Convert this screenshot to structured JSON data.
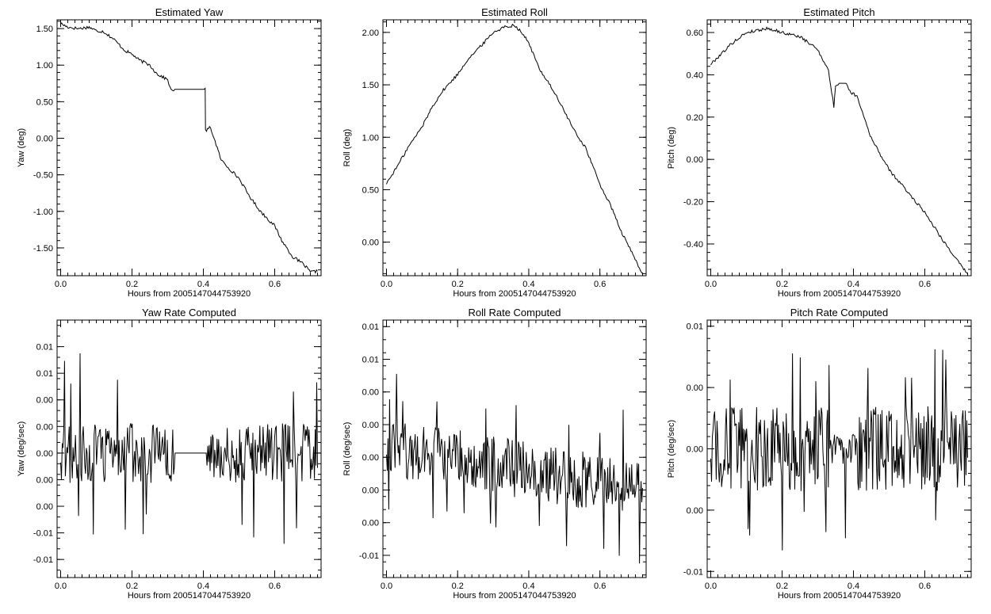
{
  "chart_data": [
    {
      "type": "line",
      "title": "Estimated Yaw",
      "xlabel": "Hours from 2005147044753920",
      "ylabel": "Yaw (deg)",
      "xlim": [
        -0.01,
        0.73
      ],
      "ylim": [
        -1.88,
        1.62
      ],
      "xticks": [
        0.0,
        0.2,
        0.4,
        0.6
      ],
      "xtick_labels": [
        "0.0",
        "0.2",
        "0.4",
        "0.6"
      ],
      "yticks": [
        1.5,
        1.0,
        0.5,
        0.0,
        -0.5,
        -1.0,
        -1.5
      ],
      "ytick_labels": [
        "1.50",
        "1.00",
        "0.50",
        "0.00",
        "-0.50",
        "-1.00",
        "-1.50"
      ],
      "series": [
        {
          "x": [
            0.0,
            0.02,
            0.05,
            0.08,
            0.1,
            0.12,
            0.15,
            0.18,
            0.2,
            0.22,
            0.25,
            0.27,
            0.3,
            0.31,
            0.32,
            0.36,
            0.405,
            0.406,
            0.42,
            0.43,
            0.45,
            0.46,
            0.5,
            0.53,
            0.56,
            0.6,
            0.62,
            0.65,
            0.68,
            0.7,
            0.72
          ],
          "y": [
            1.57,
            1.52,
            1.5,
            1.52,
            1.47,
            1.46,
            1.35,
            1.2,
            1.15,
            1.07,
            1.0,
            0.88,
            0.8,
            0.65,
            0.67,
            0.67,
            0.67,
            0.1,
            0.15,
            0.0,
            -0.3,
            -0.35,
            -0.55,
            -0.8,
            -1.0,
            -1.2,
            -1.4,
            -1.62,
            -1.72,
            -1.83,
            -1.82
          ]
        }
      ]
    },
    {
      "type": "line",
      "title": "Estimated Roll",
      "xlabel": "Hours from 2005147044753920",
      "ylabel": "Roll (deg)",
      "xlim": [
        -0.01,
        0.73
      ],
      "ylim": [
        -0.32,
        2.12
      ],
      "xticks": [
        0.0,
        0.2,
        0.4,
        0.6
      ],
      "xtick_labels": [
        "0.0",
        "0.2",
        "0.4",
        "0.6"
      ],
      "yticks": [
        2.0,
        1.5,
        1.0,
        0.5,
        0.0
      ],
      "ytick_labels": [
        "2.00",
        "1.50",
        "1.00",
        "0.50",
        "0.00"
      ],
      "series": [
        {
          "x": [
            0.0,
            0.03,
            0.06,
            0.1,
            0.13,
            0.16,
            0.2,
            0.23,
            0.26,
            0.3,
            0.33,
            0.36,
            0.38,
            0.4,
            0.43,
            0.46,
            0.5,
            0.53,
            0.56,
            0.6,
            0.63,
            0.66,
            0.69,
            0.72
          ],
          "y": [
            0.56,
            0.72,
            0.9,
            1.1,
            1.3,
            1.45,
            1.6,
            1.75,
            1.85,
            2.0,
            2.05,
            2.07,
            2.0,
            1.9,
            1.65,
            1.5,
            1.25,
            1.05,
            0.9,
            0.55,
            0.35,
            0.1,
            -0.1,
            -0.3
          ]
        }
      ]
    },
    {
      "type": "line",
      "title": "Estimated Pitch",
      "xlabel": "Hours from 2005147044753920",
      "ylabel": "Pitch (deg)",
      "xlim": [
        -0.01,
        0.73
      ],
      "ylim": [
        -0.55,
        0.66
      ],
      "xticks": [
        0.0,
        0.2,
        0.4,
        0.6
      ],
      "xtick_labels": [
        "0.0",
        "0.2",
        "0.4",
        "0.6"
      ],
      "yticks": [
        0.6,
        0.4,
        0.2,
        0.0,
        -0.2,
        -0.4
      ],
      "ytick_labels": [
        "0.60",
        "0.40",
        "0.20",
        "0.00",
        "-0.20",
        "-0.40"
      ],
      "series": [
        {
          "x": [
            0.0,
            0.03,
            0.06,
            0.1,
            0.13,
            0.16,
            0.2,
            0.25,
            0.3,
            0.33,
            0.345,
            0.35,
            0.36,
            0.38,
            0.39,
            0.41,
            0.45,
            0.5,
            0.55,
            0.6,
            0.65,
            0.7,
            0.72
          ],
          "y": [
            0.45,
            0.5,
            0.55,
            0.6,
            0.61,
            0.62,
            0.6,
            0.58,
            0.52,
            0.42,
            0.25,
            0.35,
            0.36,
            0.36,
            0.32,
            0.3,
            0.1,
            -0.05,
            -0.15,
            -0.25,
            -0.38,
            -0.5,
            -0.54
          ]
        }
      ]
    },
    {
      "type": "line",
      "title": "Yaw Rate Computed",
      "xlabel": "Hours from 2005147044753920",
      "ylabel": "Yaw (deg/sec)",
      "xlim": [
        -0.01,
        0.73
      ],
      "ylim": [
        -0.0117,
        0.0125
      ],
      "xticks": [
        0.0,
        0.2,
        0.4,
        0.6
      ],
      "xtick_labels": [
        "0.0",
        "0.2",
        "0.4",
        "0.6"
      ],
      "yticks": [
        0.01,
        0.005,
        0.0,
        -0.005,
        -0.01
      ],
      "ytick_labels": [
        "0.01",
        "0.00",
        "0.00",
        "0.00",
        "-0.01"
      ],
      "minor_yticks": [
        0.0075,
        0.0025,
        -0.0025,
        -0.0075
      ],
      "minor_ytick_labels": [
        "0.01",
        "0.00",
        "0.00",
        "-0.01"
      ],
      "noise": {
        "amplitude": 0.0028,
        "spike": 0.0095,
        "flat_from": 0.32,
        "flat_to": 0.41
      }
    },
    {
      "type": "line",
      "title": "Roll Rate Computed",
      "xlabel": "Hours from 2005147044753920",
      "ylabel": "Roll (deg/sec)",
      "xlim": [
        -0.01,
        0.73
      ],
      "ylim": [
        -0.0092,
        0.0105
      ],
      "xticks": [
        0.0,
        0.2,
        0.4,
        0.6
      ],
      "xtick_labels": [
        "0.0",
        "0.2",
        "0.4",
        "0.6"
      ],
      "yticks": [
        0.01,
        0.005,
        0.0,
        -0.005
      ],
      "ytick_labels": [
        "0.01",
        "0.00",
        "0.00",
        "0.00"
      ],
      "minor_yticks": [
        0.0075,
        0.0025,
        -0.0025,
        -0.0075
      ],
      "minor_ytick_labels": [
        "0.01",
        "0.00",
        "0.00",
        "-0.01"
      ],
      "noise": {
        "amplitude": 0.0022,
        "spike": 0.006,
        "trend_start": 0.0008,
        "trend_end": -0.0025
      }
    },
    {
      "type": "line",
      "title": "Pitch Rate Computed",
      "xlabel": "Hours from 2005147044753920",
      "ylabel": "Pitch (deg/sec)",
      "xlim": [
        -0.01,
        0.73
      ],
      "ylim": [
        -0.0105,
        0.0105
      ],
      "xticks": [
        0.0,
        0.2,
        0.4,
        0.6
      ],
      "xtick_labels": [
        "0.0",
        "0.2",
        "0.4",
        "0.6"
      ],
      "yticks": [
        0.01,
        0.005,
        0.0,
        -0.005,
        -0.01
      ],
      "ytick_labels": [
        "0.01",
        "0.00",
        "0.00",
        "0.00",
        "-0.01"
      ],
      "noise": {
        "amplitude": 0.0035,
        "spike": 0.0085,
        "quiet_from": 0.33,
        "quiet_to": 0.41
      }
    }
  ]
}
